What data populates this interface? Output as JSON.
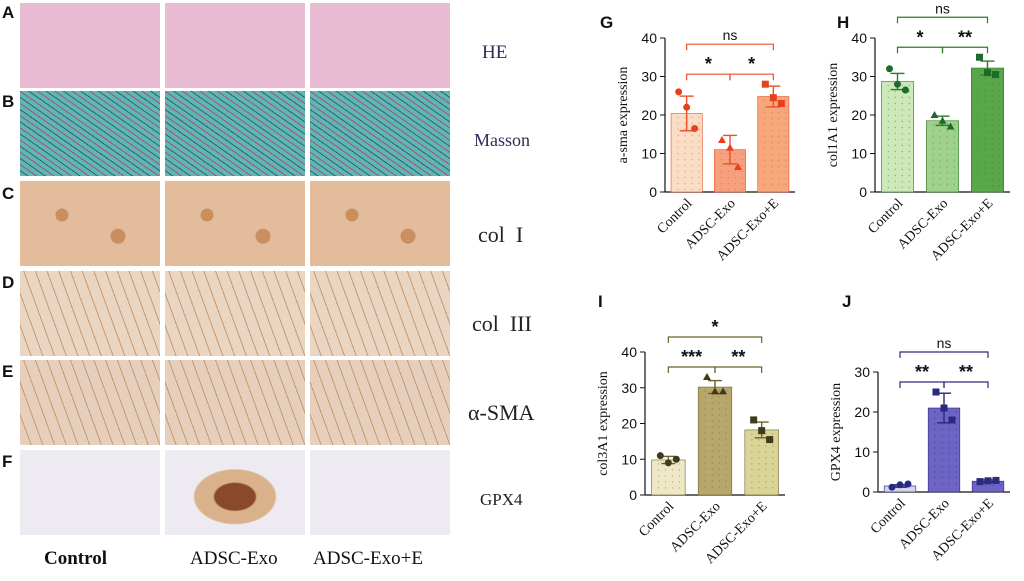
{
  "micrograph_panel": {
    "row_letters": [
      "A",
      "B",
      "C",
      "D",
      "E",
      "F"
    ],
    "row_labels": [
      "HE",
      "Masson",
      "col  I",
      "col  III",
      "α-SMA",
      "GPX4"
    ],
    "column_labels": [
      "Control",
      "ADSC-Exo",
      "ADSC-Exo+E"
    ],
    "stain_colors": {
      "HE": "#e9bcd3",
      "Masson": "#5fb7ad",
      "col_I": "#e3bd9b",
      "col_III": "#ead5c2",
      "alpha_SMA": "#e6d0bd",
      "GPX4": "#eeeaf1"
    }
  },
  "chart_data": [
    {
      "panel": "G",
      "type": "bar",
      "categories": [
        "Control",
        "ADSC-Exo",
        "ADSC-Exo+E"
      ],
      "values": [
        20.4,
        11.0,
        24.8
      ],
      "errors": [
        4.5,
        3.7,
        2.7
      ],
      "points": [
        [
          26,
          22,
          16.5
        ],
        [
          13.5,
          11.5,
          6.5
        ],
        [
          28,
          24.5,
          23
        ]
      ],
      "marker": [
        "circle",
        "triangle",
        "square"
      ],
      "ylabel": "a-sma expression",
      "ylim": [
        0,
        40
      ],
      "yticks": [
        0,
        10,
        20,
        30,
        40
      ],
      "colors": {
        "bar": [
          "#fbdcc4",
          "#f7a07e",
          "#f6a77b"
        ],
        "edge": "#e8512a",
        "point": "#e8401c"
      },
      "significance": [
        {
          "from": 0,
          "to": 1,
          "label": "*"
        },
        {
          "from": 1,
          "to": 2,
          "label": "*"
        },
        {
          "from": 0,
          "to": 2,
          "label": "ns"
        }
      ]
    },
    {
      "panel": "H",
      "type": "bar",
      "categories": [
        "Control",
        "ADSC-Exo",
        "ADSC-Exo+E"
      ],
      "values": [
        28.7,
        18.5,
        32.2
      ],
      "errors": [
        2.1,
        1.2,
        1.8
      ],
      "points": [
        [
          32,
          28,
          26.5
        ],
        [
          20,
          18.5,
          17
        ],
        [
          35,
          31,
          30.5
        ]
      ],
      "marker": [
        "circle",
        "triangle",
        "square"
      ],
      "ylabel": "col1A1 expression",
      "ylim": [
        0,
        40
      ],
      "yticks": [
        0,
        10,
        20,
        30,
        40
      ],
      "colors": {
        "bar": [
          "#cde8b9",
          "#9fd18a",
          "#5aa64a"
        ],
        "edge": "#2f7b2a",
        "point": "#1c6b2a"
      },
      "significance": [
        {
          "from": 0,
          "to": 1,
          "label": "*"
        },
        {
          "from": 1,
          "to": 2,
          "label": "**"
        },
        {
          "from": 0,
          "to": 2,
          "label": "ns"
        }
      ]
    },
    {
      "panel": "I",
      "type": "bar",
      "categories": [
        "Control",
        "ADSC-Exo",
        "ADSC-Exo+E"
      ],
      "values": [
        9.8,
        30.2,
        18.2
      ],
      "errors": [
        1.0,
        1.8,
        2.2
      ],
      "points": [
        [
          11,
          9,
          10
        ],
        [
          33,
          29,
          29
        ],
        [
          21,
          18,
          15.5
        ]
      ],
      "marker": [
        "circle",
        "triangle",
        "square"
      ],
      "ylabel": "col3A1 expression",
      "ylim": [
        0,
        40
      ],
      "yticks": [
        0,
        10,
        20,
        30,
        40
      ],
      "colors": {
        "bar": [
          "#efe8c8",
          "#b7a76d",
          "#d8d597"
        ],
        "edge": "#6d6426",
        "point": "#3f3a1a"
      },
      "significance": [
        {
          "from": 0,
          "to": 1,
          "label": "***"
        },
        {
          "from": 1,
          "to": 2,
          "label": "**"
        },
        {
          "from": 0,
          "to": 2,
          "label": "*"
        }
      ]
    },
    {
      "panel": "J",
      "type": "bar",
      "categories": [
        "Control",
        "ADSC-Exo",
        "ADSC-Exo+E"
      ],
      "values": [
        1.5,
        21.0,
        2.7
      ],
      "errors": [
        0.3,
        3.7,
        0.3
      ],
      "points": [
        [
          1.2,
          1.8,
          2.0
        ],
        [
          25,
          21,
          18
        ],
        [
          2.6,
          2.8,
          2.9
        ]
      ],
      "marker": [
        "circle",
        "square",
        "square"
      ],
      "ylabel": "GPX4 expression",
      "ylim": [
        0,
        30
      ],
      "yticks": [
        0,
        10,
        20,
        30
      ],
      "colors": {
        "bar": [
          "#d6d3ee",
          "#6d64c4",
          "#6d64c4"
        ],
        "edge": "#2b2a7a",
        "point": "#2a2a80"
      },
      "significance": [
        {
          "from": 0,
          "to": 1,
          "label": "**"
        },
        {
          "from": 1,
          "to": 2,
          "label": "**"
        },
        {
          "from": 0,
          "to": 2,
          "label": "ns"
        }
      ]
    }
  ]
}
